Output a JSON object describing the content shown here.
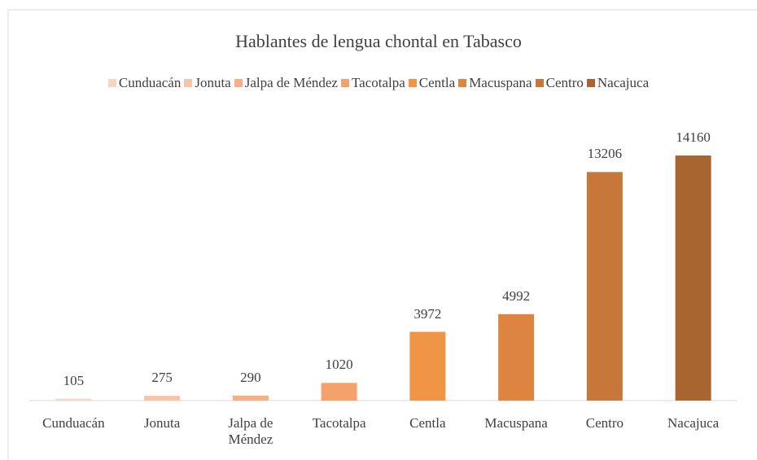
{
  "chart_data": {
    "type": "bar",
    "title": "Hablantes de lengua chontal en Tabasco",
    "categories": [
      "Cunduacán",
      "Jonuta",
      "Jalpa de Méndez",
      "Tacotalpa",
      "Centla",
      "Macuspana",
      "Centro",
      "Nacajuca"
    ],
    "values": [
      105,
      275,
      290,
      1020,
      3972,
      4992,
      13206,
      14160
    ],
    "colors": [
      "#f8d5c3",
      "#f6c4a6",
      "#f4b084",
      "#f4a26a",
      "#f09545",
      "#dc8440",
      "#c8773a",
      "#a9652f"
    ],
    "legend": true
  }
}
